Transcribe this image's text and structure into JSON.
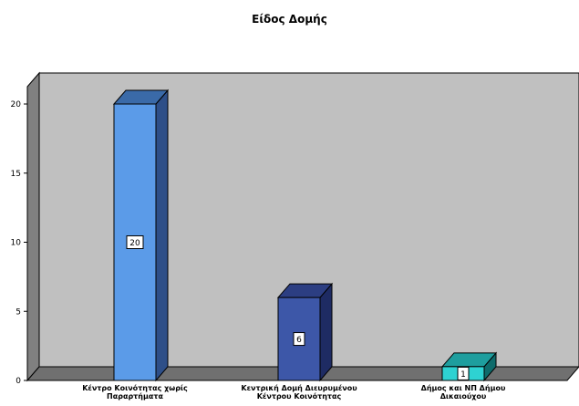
{
  "chart_data": {
    "type": "bar",
    "title": "Είδος Δομής",
    "categories": [
      [
        "Κέντρο Κοινότητας χωρίς",
        "Παραρτήματα"
      ],
      [
        "Κεντρική Δομή Διευρυμένου",
        "Κέντρου Κοινότητας"
      ],
      [
        "Δήμος και ΝΠ Δήμου",
        "Δικαιούχου"
      ]
    ],
    "values": [
      20,
      6,
      1
    ],
    "data_labels": [
      "20",
      "6",
      "1"
    ],
    "yticks": [
      "0",
      "5",
      "10",
      "15",
      "20"
    ],
    "ylim": [
      0,
      21.5
    ],
    "grid": false,
    "legend": "none",
    "colors": {
      "bars": [
        {
          "front": "#5B9BE8",
          "side": "#2E4F88",
          "top": "#3A6AA8"
        },
        {
          "front": "#3D57A8",
          "side": "#1E2B63",
          "top": "#2C3E82"
        },
        {
          "front": "#2ED2D2",
          "side": "#0E6B6B",
          "top": "#1E9E9E"
        }
      ],
      "wall": "#C0C0C0",
      "side_wall": "#808080",
      "floor": "#707070"
    }
  }
}
